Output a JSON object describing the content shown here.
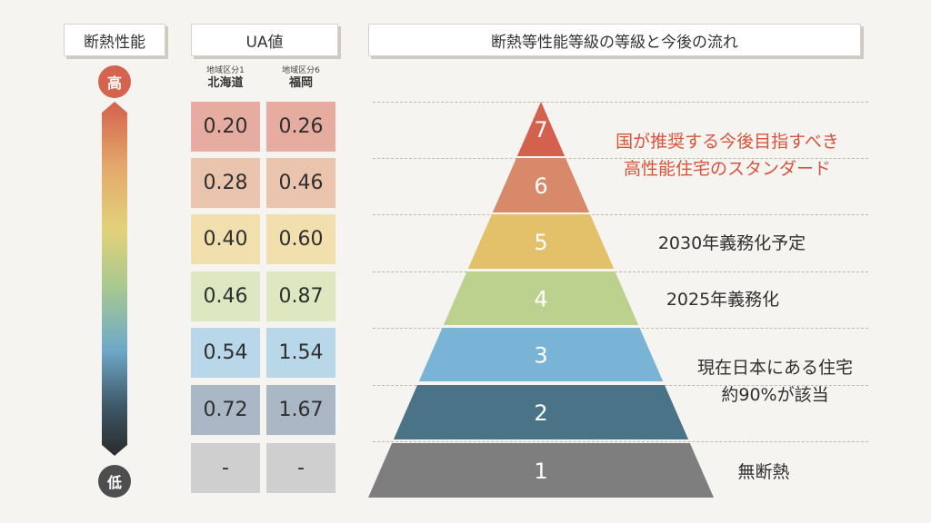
{
  "headers": {
    "performance": "断熱性能",
    "ua": "UA値",
    "flow": "断熱等性能等級の等級と今後の流れ"
  },
  "scale": {
    "high": "高",
    "low": "低"
  },
  "regions": [
    {
      "sub": "地域区分1",
      "city": "北海道"
    },
    {
      "sub": "地域区分6",
      "city": "福岡"
    }
  ],
  "ua_rows": [
    {
      "grade": 7,
      "hokkaido": "0.20",
      "fukuoka": "0.26",
      "color": "#e6aca0"
    },
    {
      "grade": 6,
      "hokkaido": "0.28",
      "fukuoka": "0.46",
      "color": "#ebc4ad"
    },
    {
      "grade": 5,
      "hokkaido": "0.40",
      "fukuoka": "0.60",
      "color": "#f1e0ae"
    },
    {
      "grade": 4,
      "hokkaido": "0.46",
      "fukuoka": "0.87",
      "color": "#dde7c0"
    },
    {
      "grade": 3,
      "hokkaido": "0.54",
      "fukuoka": "1.54",
      "color": "#b8d7e8"
    },
    {
      "grade": 2,
      "hokkaido": "0.72",
      "fukuoka": "1.67",
      "color": "#a9b8c4"
    },
    {
      "grade": 1,
      "hokkaido": "-",
      "fukuoka": "-",
      "color": "#cfcfcf"
    }
  ],
  "pyramid": [
    {
      "grade": "7",
      "color": "#d4614d"
    },
    {
      "grade": "6",
      "color": "#d7896a"
    },
    {
      "grade": "5",
      "color": "#e3c06a"
    },
    {
      "grade": "4",
      "color": "#bdd18f"
    },
    {
      "grade": "3",
      "color": "#79b4d6"
    },
    {
      "grade": "2",
      "color": "#4b7387"
    },
    {
      "grade": "1",
      "color": "#7e7e7e"
    }
  ],
  "annotations": {
    "target_line1": "国が推奨する今後目指すべき",
    "target_line2": "高性能住宅のスタンダード",
    "g5": "2030年義務化予定",
    "g4": "2025年義務化",
    "g3_line1": "現在日本にある住宅",
    "g3_line2": "約90%が該当",
    "g1": "無断熱"
  },
  "colors": {
    "accent_red": "#d9533b",
    "gradient": [
      "#d4614d",
      "#e3a86a",
      "#e3d27a",
      "#a9c98f",
      "#6fa9c8",
      "#3e5868",
      "#2a2a2a"
    ]
  }
}
